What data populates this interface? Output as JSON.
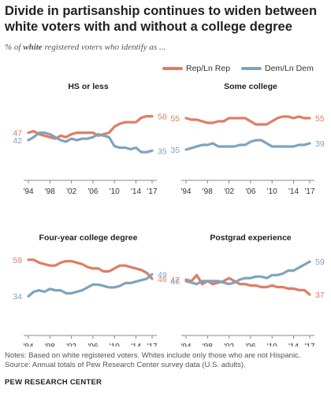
{
  "title": "Divide in partisanship continues to widen between white voters with and without a college degree",
  "subtitle": {
    "prefix": "% of ",
    "emphasis": "white",
    "suffix": " registered voters who identify as ..."
  },
  "legend": [
    {
      "label": "Rep/Ln Rep",
      "color": "#e07c62"
    },
    {
      "label": "Dem/Ln Dem",
      "color": "#7fa3bd"
    }
  ],
  "notes": "Notes: Based on white registered voters. Whites include only those who are not Hispanic.",
  "source": "Source: Annual totals of Pew Research Center survey data (U.S. adults).",
  "brand": "PEW RESEARCH CENTER",
  "colors": {
    "rep": "#e07c62",
    "dem": "#7fa3bd"
  },
  "chart_data": [
    {
      "type": "line",
      "title": "HS or less",
      "x": [
        1994,
        1995,
        1996,
        1997,
        1998,
        1999,
        2000,
        2001,
        2002,
        2003,
        2004,
        2005,
        2006,
        2007,
        2008,
        2009,
        2010,
        2011,
        2012,
        2013,
        2014,
        2015,
        2016,
        2017
      ],
      "xticks": [
        "'94",
        "'98",
        "'02",
        "'06",
        "'10",
        "'14",
        "'17"
      ],
      "ylim": [
        20,
        70
      ],
      "series": [
        {
          "name": "Rep/Ln Rep",
          "values": [
            47,
            48,
            46,
            45,
            44,
            43,
            45,
            44,
            46,
            47,
            47,
            47,
            47,
            45,
            46,
            47,
            51,
            53,
            54,
            54,
            54,
            57,
            58,
            58
          ],
          "end_label": "58",
          "start_label": "47"
        },
        {
          "name": "Dem/Ln Dem",
          "values": [
            42,
            44,
            47,
            47,
            46,
            44,
            42,
            41,
            43,
            42,
            43,
            43,
            44,
            46,
            45,
            44,
            38,
            37,
            37,
            36,
            37,
            34,
            34,
            35
          ],
          "end_label": "35",
          "start_label": "42"
        }
      ]
    },
    {
      "type": "line",
      "title": "Some college",
      "x": [
        1994,
        1995,
        1996,
        1997,
        1998,
        1999,
        2000,
        2001,
        2002,
        2003,
        2004,
        2005,
        2006,
        2007,
        2008,
        2009,
        2010,
        2011,
        2012,
        2013,
        2014,
        2015,
        2016,
        2017
      ],
      "xticks": [
        "'94",
        "'98",
        "'02",
        "'06",
        "'10",
        "'14",
        "'17"
      ],
      "ylim": [
        20,
        70
      ],
      "series": [
        {
          "name": "Rep/Ln Rep",
          "values": [
            55,
            54,
            54,
            53,
            52,
            52,
            53,
            53,
            55,
            55,
            55,
            55,
            53,
            51,
            51,
            51,
            53,
            55,
            56,
            56,
            55,
            56,
            55,
            55
          ],
          "end_label": "55",
          "start_label": "55"
        },
        {
          "name": "Dem/Ln Dem",
          "values": [
            35,
            36,
            37,
            38,
            38,
            39,
            37,
            37,
            37,
            37,
            38,
            38,
            40,
            41,
            41,
            39,
            37,
            37,
            37,
            37,
            37,
            38,
            38,
            39
          ],
          "end_label": "39",
          "start_label": "35"
        }
      ]
    },
    {
      "type": "line",
      "title": "Four-year college degree",
      "x": [
        1994,
        1995,
        1996,
        1997,
        1998,
        1999,
        2000,
        2001,
        2002,
        2003,
        2004,
        2005,
        2006,
        2007,
        2008,
        2009,
        2010,
        2011,
        2012,
        2013,
        2014,
        2015,
        2016,
        2017
      ],
      "xticks": [
        "'94",
        "'98",
        "'02",
        "'06",
        "'10",
        "'14",
        "'17"
      ],
      "ylim": [
        20,
        70
      ],
      "series": [
        {
          "name": "Rep/Ln Rep",
          "values": [
            59,
            59,
            57,
            56,
            55,
            55,
            57,
            58,
            58,
            57,
            56,
            54,
            53,
            53,
            51,
            51,
            53,
            55,
            55,
            54,
            53,
            52,
            50,
            46
          ],
          "end_label": "46",
          "start_label": "59"
        },
        {
          "name": "Dem/Ln Dem",
          "values": [
            34,
            37,
            38,
            37,
            39,
            38,
            38,
            36,
            36,
            37,
            38,
            40,
            42,
            42,
            41,
            40,
            40,
            41,
            43,
            43,
            44,
            45,
            46,
            49
          ],
          "end_label": "49",
          "start_label": "34"
        }
      ]
    },
    {
      "type": "line",
      "title": "Postgrad experience",
      "x": [
        1994,
        1995,
        1996,
        1997,
        1998,
        1999,
        2000,
        2001,
        2002,
        2003,
        2004,
        2005,
        2006,
        2007,
        2008,
        2009,
        2010,
        2011,
        2012,
        2013,
        2014,
        2015,
        2016,
        2017
      ],
      "xticks": [
        "'94",
        "'98",
        "'02",
        "'06",
        "'10",
        "'14",
        "'17"
      ],
      "ylim": [
        20,
        70
      ],
      "series": [
        {
          "name": "Rep/Ln Rep",
          "values": [
            47,
            46,
            50,
            44,
            46,
            44,
            45,
            46,
            48,
            46,
            44,
            44,
            43,
            43,
            42,
            42,
            43,
            42,
            42,
            41,
            41,
            40,
            40,
            37
          ],
          "end_label": "37",
          "start_label": "47"
        },
        {
          "name": "Dem/Ln Dem",
          "values": [
            46,
            45,
            44,
            46,
            46,
            46,
            46,
            45,
            44,
            45,
            47,
            48,
            48,
            49,
            49,
            48,
            50,
            50,
            51,
            53,
            53,
            55,
            57,
            59
          ],
          "end_label": "59",
          "start_label": "46"
        }
      ]
    }
  ]
}
